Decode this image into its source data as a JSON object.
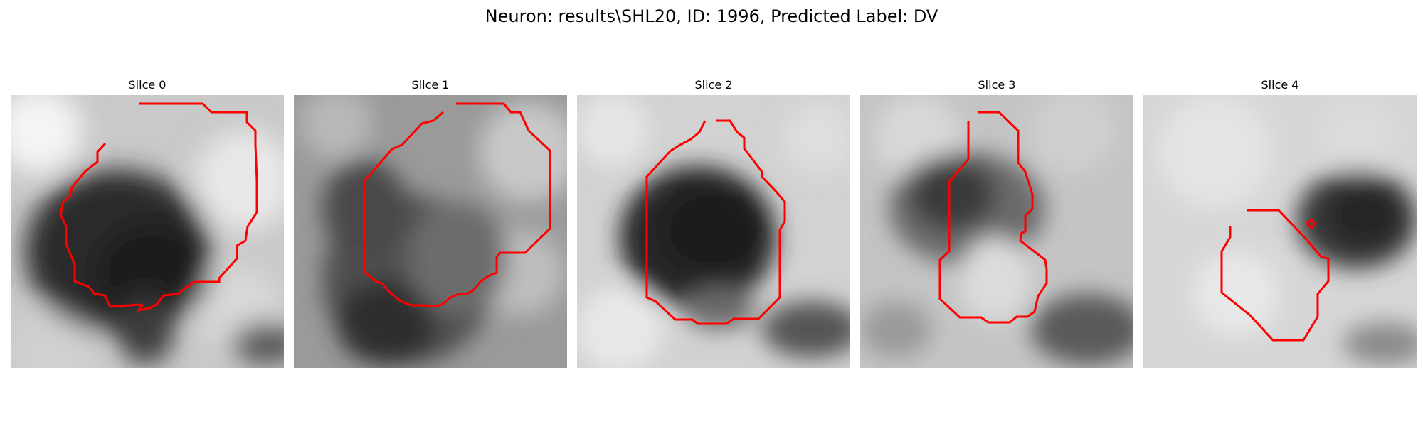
{
  "figure": {
    "title": "Neuron: results\\SHL20, ID: 1996, Predicted Label: DV",
    "contour_color": "#ff0000",
    "panels": [
      {
        "title": "Slice 0",
        "image": "grayscale-microscopy-tile",
        "overlay": "red-roi-contour"
      },
      {
        "title": "Slice 1",
        "image": "grayscale-microscopy-tile",
        "overlay": "red-roi-contour"
      },
      {
        "title": "Slice 2",
        "image": "grayscale-microscopy-tile",
        "overlay": "red-roi-contour"
      },
      {
        "title": "Slice 3",
        "image": "grayscale-microscopy-tile",
        "overlay": "red-roi-contour"
      },
      {
        "title": "Slice 4",
        "image": "grayscale-microscopy-tile",
        "overlay": "red-roi-contour"
      }
    ]
  }
}
